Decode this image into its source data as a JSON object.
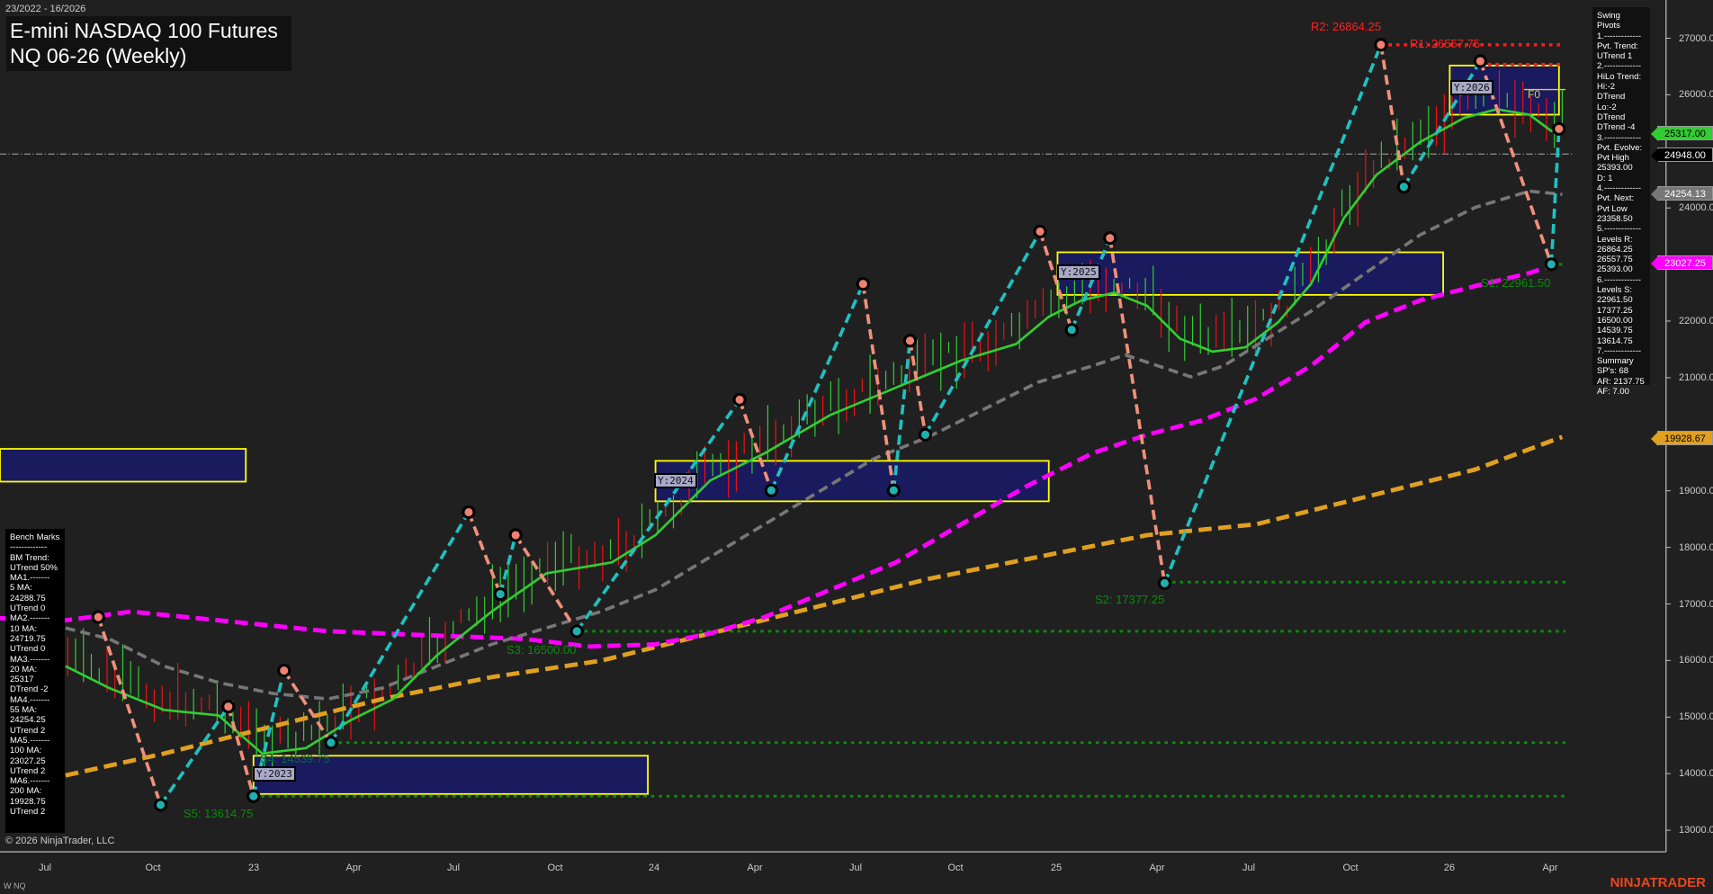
{
  "header": {
    "date_range": "23/2022 - 16/2026",
    "title": "E-mini NASDAQ 100 Futures",
    "subtitle": "NQ 06-26 (Weekly)"
  },
  "swing_pivots": {
    "lines": [
      "Swing Pivots",
      "1.-------------",
      "Pvt. Trend:",
      "UTrend 1",
      "2.-------------",
      "HiLo Trend:",
      "Hi:-2 DTrend",
      "Lo:-2 DTrend",
      "DTrend -4",
      "3.-------------",
      "Pvt. Evolve:",
      "Pvt High",
      "25393.00",
      "D: 1",
      "4.-------------",
      "Pvt. Next:",
      "Pvt Low",
      "23358.50",
      "5.-------------",
      "Levels R:",
      "26864.25",
      "26557.75",
      "25393.00",
      "6.-------------",
      "Levels S:",
      "22961.50",
      "17377.25",
      "16500.00",
      "14539.75",
      "13614.75",
      "7.-------------",
      "Summary",
      "SP's: 68",
      "AR: 2137.75",
      "AF: 7.00"
    ]
  },
  "bench_marks": {
    "lines": [
      "Bench Marks",
      "-------------",
      "BM Trend:",
      "UTrend 50%",
      "MA1.-------",
      "5 MA:",
      "24288.75",
      "UTrend 0",
      "MA2.-------",
      "10 MA:",
      "24719.75",
      "UTrend 0",
      "MA3.-------",
      "20 MA:",
      "25317",
      "DTrend -2",
      "MA4.-------",
      "55 MA:",
      "24254.25",
      "UTrend 2",
      "MA5.-------",
      "100 MA:",
      "23027.25",
      "UTrend 2",
      "MA6.-------",
      "200 MA:",
      "19928.75",
      "UTrend 2"
    ]
  },
  "price_axis": {
    "ticks": [
      27000,
      26000,
      24000,
      22000,
      21000,
      19000,
      18000,
      17000,
      16000,
      15000,
      14000,
      13000
    ],
    "labels": [
      "27000.00",
      "26000.00",
      "24000.00",
      "22000.00",
      "21000.00",
      "19000.00",
      "18000.00",
      "17000.00",
      "16000.00",
      "15000.00",
      "14000.00",
      "13000.00"
    ]
  },
  "price_markers": [
    {
      "value": 25317,
      "label": "25317.00",
      "bg": "#33cc33",
      "fg": "#000000"
    },
    {
      "value": 24948,
      "label": "24948.00",
      "bg": "#000000",
      "fg": "#ffffff"
    },
    {
      "value": 24254.13,
      "label": "24254.13",
      "bg": "#777777",
      "fg": "#ffffff"
    },
    {
      "value": 23027.25,
      "label": "23027.25",
      "bg": "#ff00ff",
      "fg": "#ffffff"
    },
    {
      "value": 19928.67,
      "label": "19928.67",
      "bg": "#e0a020",
      "fg": "#000000"
    }
  ],
  "time_axis": {
    "labels": [
      "Jul",
      "Oct",
      "23",
      "Apr",
      "Jul",
      "Oct",
      "24",
      "Apr",
      "Jul",
      "Oct",
      "25",
      "Apr",
      "Jul",
      "Oct",
      "26",
      "Apr"
    ]
  },
  "levels": {
    "r2": "R2: 26864.25",
    "r1": "R1: 26557.75",
    "s1": "S1: 22961.50",
    "s2": "S2: 17377.25",
    "s3": "S3: 16500.00",
    "s4": "S4: 14539.75",
    "s5": "S5: 13614.75"
  },
  "year_boxes": {
    "y2023": "Y:2023",
    "y2024": "Y:2024",
    "y2025": "Y:2025",
    "y2026": "Y:2026",
    "f0": "F0"
  },
  "colors": {
    "background": "#202020",
    "ma20": "#33cc33",
    "ma55": "#777777",
    "ma100": "#ff00ff",
    "ma200": "#e0a020",
    "swing_up": "#20c0c0",
    "swing_down": "#f0907a",
    "resistance": "#ff1a1a",
    "support": "#0a8a0a",
    "year_box_fill": "#1a1a5e",
    "year_box_border": "#ffff00"
  },
  "footer": {
    "copyright": "© 2026 NinjaTrader, LLC",
    "instrument": "W NQ",
    "logo": "NINJATRADER"
  }
}
